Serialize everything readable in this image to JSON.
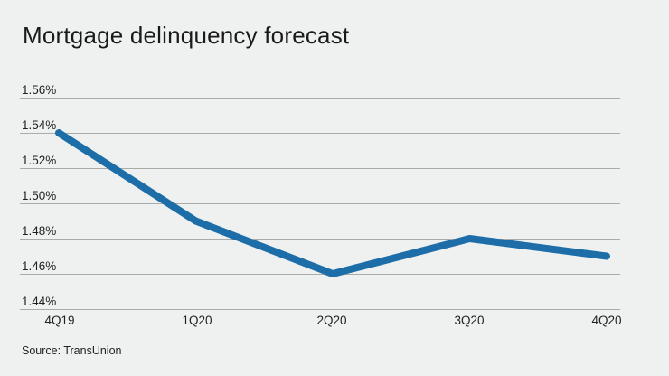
{
  "page": {
    "title": "Mortgage delinquency forecast",
    "source": "Source: TransUnion"
  },
  "colors": {
    "background": "#eff1f0",
    "line": "#1d6ea8",
    "grid": "#a9aca9",
    "text": "#1a1a1a"
  },
  "chart_data": {
    "type": "line",
    "title": "Mortgage delinquency forecast",
    "categories": [
      "4Q19",
      "1Q20",
      "2Q20",
      "3Q20",
      "4Q20"
    ],
    "values": [
      1.54,
      1.49,
      1.46,
      1.48,
      1.47
    ],
    "unit": "%",
    "xlabel": "",
    "ylabel": "",
    "ylim": [
      1.44,
      1.56
    ],
    "ytick_step": 0.02,
    "ytick_labels": [
      "1.56%",
      "1.54%",
      "1.52%",
      "1.50%",
      "1.48%",
      "1.46%",
      "1.44%"
    ],
    "grid": true,
    "legend": false,
    "source": "Source: TransUnion"
  }
}
